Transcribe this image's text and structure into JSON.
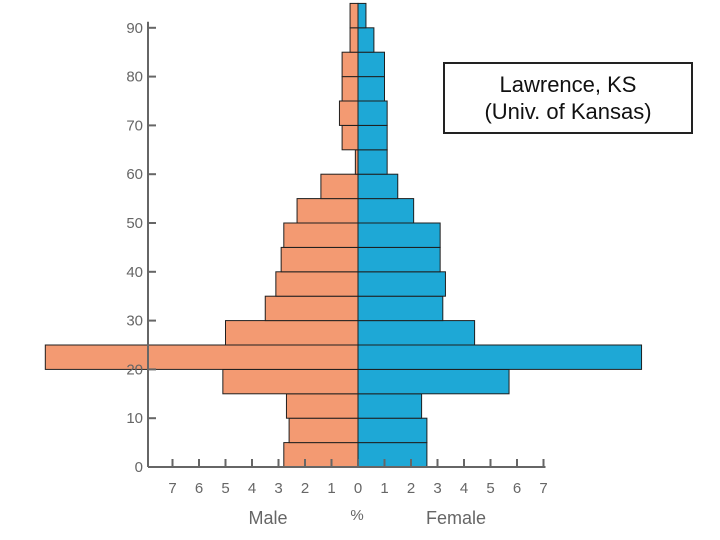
{
  "chart_data": {
    "type": "bar",
    "orientation": "horizontal-population-pyramid",
    "annotation": [
      "Lawrence, KS",
      "(Univ. of Kansas)"
    ],
    "xlabel_left": "Male",
    "xlabel_center": "%",
    "xlabel_right": "Female",
    "x_ticks": [
      "7",
      "6",
      "5",
      "4",
      "3",
      "2",
      "1",
      "0",
      "1",
      "2",
      "3",
      "4",
      "5",
      "6",
      "7"
    ],
    "y_ticks": [
      "0",
      "10",
      "20",
      "30",
      "40",
      "50",
      "60",
      "70",
      "80",
      "90"
    ],
    "xlim": [
      -7,
      7
    ],
    "ylim": [
      0,
      90
    ],
    "age_bands": [
      {
        "lo": 0,
        "hi": 5,
        "male": 2.8,
        "female": 2.6
      },
      {
        "lo": 5,
        "hi": 10,
        "male": 2.6,
        "female": 2.6
      },
      {
        "lo": 10,
        "hi": 15,
        "male": 2.7,
        "female": 2.4
      },
      {
        "lo": 15,
        "hi": 20,
        "male": 5.1,
        "female": 5.7
      },
      {
        "lo": 20,
        "hi": 25,
        "male": 11.8,
        "female": 10.7
      },
      {
        "lo": 25,
        "hi": 30,
        "male": 5.0,
        "female": 4.4
      },
      {
        "lo": 30,
        "hi": 35,
        "male": 3.5,
        "female": 3.2
      },
      {
        "lo": 35,
        "hi": 40,
        "male": 3.1,
        "female": 3.3
      },
      {
        "lo": 40,
        "hi": 45,
        "male": 2.9,
        "female": 3.1
      },
      {
        "lo": 45,
        "hi": 50,
        "male": 2.8,
        "female": 3.1
      },
      {
        "lo": 50,
        "hi": 55,
        "male": 2.3,
        "female": 2.1
      },
      {
        "lo": 55,
        "hi": 60,
        "male": 1.4,
        "female": 1.5
      },
      {
        "lo": 60,
        "hi": 65,
        "male": 0.1,
        "female": 1.1
      },
      {
        "lo": 65,
        "hi": 70,
        "male": 0.6,
        "female": 1.1
      },
      {
        "lo": 70,
        "hi": 75,
        "male": 0.7,
        "female": 1.1
      },
      {
        "lo": 75,
        "hi": 80,
        "male": 0.6,
        "female": 1.0
      },
      {
        "lo": 80,
        "hi": 85,
        "male": 0.6,
        "female": 1.0
      },
      {
        "lo": 85,
        "hi": 90,
        "male": 0.3,
        "female": 0.6
      },
      {
        "lo": 90,
        "hi": 95,
        "male": 0.3,
        "female": 0.3
      }
    ],
    "colors": {
      "male": "#f39a72",
      "female": "#1ea8d6",
      "bar_edge": "#1f1f1f",
      "axis": "#666666"
    },
    "grid": false
  }
}
